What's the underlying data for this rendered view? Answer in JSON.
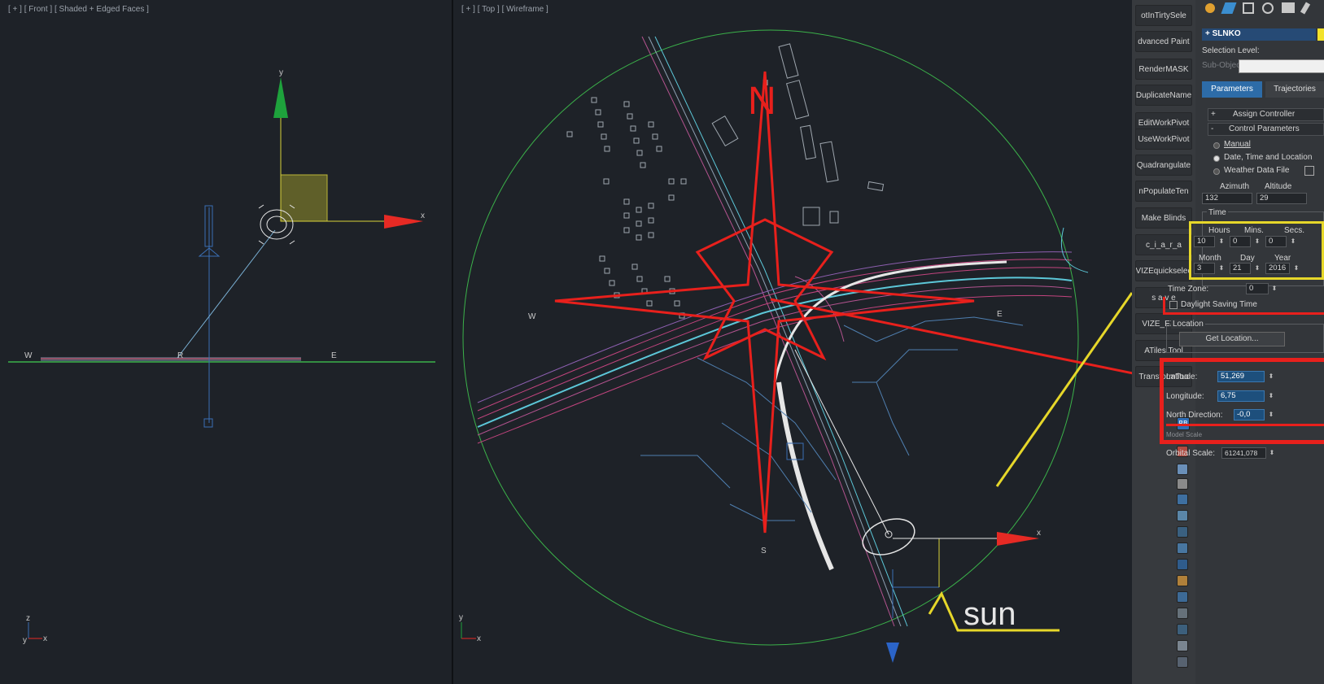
{
  "viewports": {
    "front": {
      "label": "[ + ] [ Front ] [ Shaded + Edged Faces ]",
      "axis_y": "y",
      "axis_x": "x",
      "compass_w": "W",
      "compass_r": "R",
      "compass_e": "E",
      "corner_z": "z",
      "corner_y": "y",
      "corner_x": "x"
    },
    "top": {
      "label": "[ + ] [ Top ] [ Wireframe ]",
      "north": "N",
      "south": "S",
      "west": "W",
      "east": "E",
      "axis_x": "x",
      "corner_y": "y",
      "corner_x": "x",
      "annotation_n": "N",
      "annotation_sun": "sun"
    }
  },
  "toolstrip": {
    "buttons": [
      "otInTirtySele",
      "dvanced Paint",
      "RenderMASK",
      "DuplicateName",
      "EditWorkPivot",
      "UseWorkPivot",
      "Quadrangulate",
      "nPopulateTen",
      "Make Blinds",
      "c_i_a_r_a",
      "VIZEquickselec",
      "s a v e",
      "VIZE_EXPL",
      "ATiles Tool",
      "TransformToo"
    ],
    "rb_label": "RB"
  },
  "panel": {
    "object_name": "+ SLNKO",
    "selection_level_label": "Selection Level:",
    "sub_object": "Sub-Object",
    "tabs": {
      "parameters": "Parameters",
      "trajectories": "Trajectories"
    },
    "assign_controller": "Assign Controller",
    "control_parameters": "Control Parameters",
    "manual": "Manual",
    "date_time_location": "Date, Time and Location",
    "weather_data_file": "Weather Data File",
    "azimuth_label": "Azimuth",
    "altitude_label": "Altitude",
    "azimuth": "132",
    "altitude": "29",
    "time_group": "Time",
    "hours_label": "Hours",
    "mins_label": "Mins.",
    "secs_label": "Secs.",
    "hours": "10",
    "mins": "0",
    "secs": "0",
    "month_label": "Month",
    "day_label": "Day",
    "year_label": "Year",
    "month": "3",
    "day": "21",
    "year": "2016",
    "time_zone_label": "Time Zone:",
    "time_zone": "0",
    "daylight_saving": "Daylight Saving Time",
    "location_group": "Location",
    "get_location": "Get Location...",
    "latitude_label": "Latitude:",
    "latitude": "51,269",
    "longitude_label": "Longitude:",
    "longitude": "6,75",
    "north_direction_label": "North Direction:",
    "north_direction": "-0,0",
    "model_scale_label": "Model Scale",
    "orbital_scale_label": "Orbital Scale:",
    "orbital_scale": "61241,078"
  },
  "colors": {
    "annotation_red": "#e8201c",
    "annotation_yellow": "#e6d72a",
    "highlight_blue": "#1d4f7c",
    "viewport_bg": "#1e2228"
  }
}
